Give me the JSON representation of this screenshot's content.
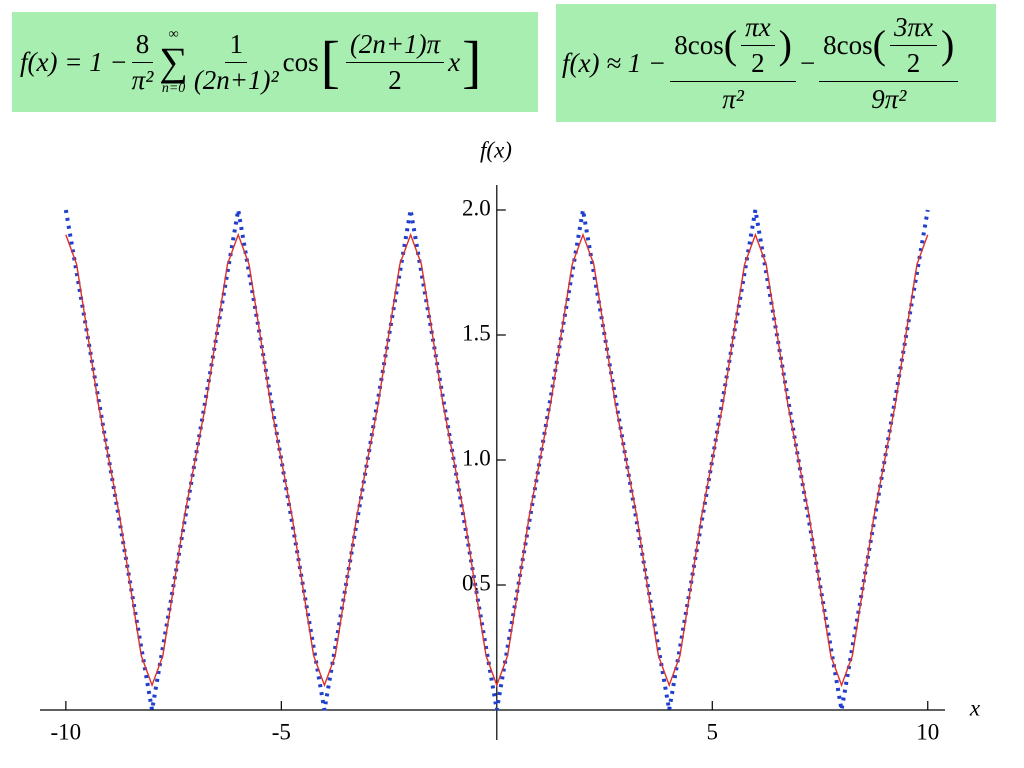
{
  "formulas": {
    "exact": {
      "lhs": "f(x) = 1 −",
      "c_num": "8",
      "c_den": "π²",
      "sum_top": "∞",
      "sum_sym": "∑",
      "sum_bottom": "n=0",
      "t_num": "1",
      "t_den": "(2n+1)²",
      "cos": "cos",
      "open": "[",
      "arg_num": "(2n+1)π",
      "arg_den": "2",
      "arg_x": "x",
      "close": "]"
    },
    "approx": {
      "lhs": "f(x) ≈ 1 −",
      "a_pre": "8cos",
      "a_open": "(",
      "a_in_num": "πx",
      "a_in_den": "2",
      "a_close": ")",
      "a_den": "π²",
      "minus": "−",
      "b_pre": "8cos",
      "b_open": "(",
      "b_in_num": "3πx",
      "b_in_den": "2",
      "b_close": ")",
      "b_den": "9π²"
    }
  },
  "chart_data": {
    "type": "line",
    "x_label": "x",
    "y_label": "f(x)",
    "x": [
      -10,
      -9.75,
      -9.5,
      -9.25,
      -9,
      -8.75,
      -8.5,
      -8.25,
      -8,
      -7.75,
      -7.5,
      -7.25,
      -7,
      -6.75,
      -6.5,
      -6.25,
      -6,
      -5.75,
      -5.5,
      -5.25,
      -5,
      -4.75,
      -4.5,
      -4.25,
      -4,
      -3.75,
      -3.5,
      -3.25,
      -3,
      -2.75,
      -2.5,
      -2.25,
      -2,
      -1.75,
      -1.5,
      -1.25,
      -1,
      -0.75,
      -0.5,
      -0.25,
      0,
      0.25,
      0.5,
      0.75,
      1,
      1.25,
      1.5,
      1.75,
      2,
      2.25,
      2.5,
      2.75,
      3,
      3.25,
      3.5,
      3.75,
      4,
      4.25,
      4.5,
      4.75,
      5,
      5.25,
      5.5,
      5.75,
      6,
      6.25,
      6.5,
      6.75,
      7,
      7.25,
      7.5,
      7.75,
      8,
      8.25,
      8.5,
      8.75,
      9,
      9.25,
      9.5,
      9.75,
      10
    ],
    "series": [
      {
        "color": "#1f3fd0",
        "style": "dotted",
        "values": [
          2,
          1.75,
          1.5,
          1.25,
          1,
          0.75,
          0.5,
          0.25,
          0,
          0.25,
          0.5,
          0.75,
          1,
          1.25,
          1.5,
          1.75,
          2,
          1.75,
          1.5,
          1.25,
          1,
          0.75,
          0.5,
          0.25,
          0,
          0.25,
          0.5,
          0.75,
          1,
          1.25,
          1.5,
          1.75,
          2,
          1.75,
          1.5,
          1.25,
          1,
          0.75,
          0.5,
          0.25,
          0,
          0.25,
          0.5,
          0.75,
          1,
          1.25,
          1.5,
          1.75,
          2,
          1.75,
          1.5,
          1.25,
          1,
          0.75,
          0.5,
          0.25,
          0,
          0.25,
          0.5,
          0.75,
          1,
          1.25,
          1.5,
          1.75,
          2,
          1.75,
          1.5,
          1.25,
          1,
          0.75,
          0.5,
          0.25,
          0,
          0.25,
          0.5,
          0.75,
          1,
          1.25,
          1.5,
          1.75,
          2
        ]
      },
      {
        "color": "#e0302a",
        "style": "solid",
        "values": [
          1.901,
          1.783,
          1.509,
          1.227,
          1,
          0.773,
          0.491,
          0.217,
          0.099,
          0.217,
          0.491,
          0.773,
          1,
          1.227,
          1.509,
          1.783,
          1.901,
          1.783,
          1.509,
          1.227,
          1,
          0.773,
          0.491,
          0.217,
          0.099,
          0.217,
          0.491,
          0.773,
          1,
          1.227,
          1.509,
          1.783,
          1.901,
          1.783,
          1.509,
          1.227,
          1,
          0.773,
          0.491,
          0.217,
          0.099,
          0.217,
          0.491,
          0.773,
          1,
          1.227,
          1.509,
          1.783,
          1.901,
          1.783,
          1.509,
          1.227,
          1,
          0.773,
          0.491,
          0.217,
          0.099,
          0.217,
          0.491,
          0.773,
          1,
          1.227,
          1.509,
          1.783,
          1.901,
          1.783,
          1.509,
          1.227,
          1,
          0.773,
          0.491,
          0.217,
          0.099,
          0.217,
          0.491,
          0.773,
          1,
          1.227,
          1.509,
          1.783,
          1.901
        ]
      }
    ],
    "xlim": [
      -10.6,
      10.4
    ],
    "xticks": [
      -10,
      -5,
      5,
      10
    ],
    "ylim": [
      0,
      2.1
    ],
    "yticks": [
      {
        "value": 0.5,
        "label": "0.5"
      },
      {
        "value": 1,
        "label": "1.0"
      },
      1.5,
      {
        "value": 2,
        "label": "2.0"
      }
    ]
  }
}
